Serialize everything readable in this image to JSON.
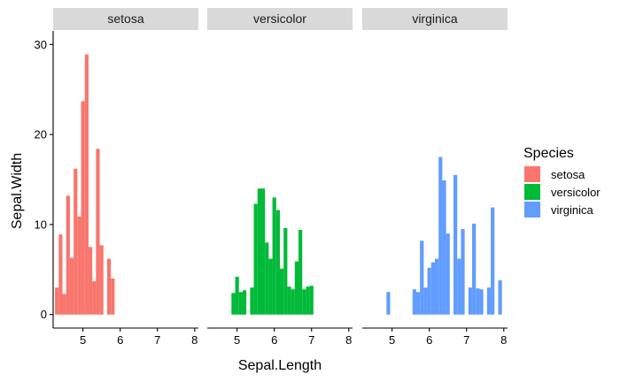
{
  "chart_data": {
    "type": "bar",
    "xlabel": "Sepal.Length",
    "ylabel": "Sepal.Width",
    "x_ticks": [
      5,
      6,
      7,
      8
    ],
    "y_ticks": [
      0,
      10,
      20,
      30
    ],
    "xlim": [
      4.2,
      8.1
    ],
    "ylim": [
      -1.5,
      31.5
    ],
    "grid": false,
    "legend": {
      "title": "Species",
      "position": "right",
      "entries": [
        "setosa",
        "versicolor",
        "virginica"
      ]
    },
    "facets": [
      {
        "name": "setosa",
        "color": "#F8766D",
        "x": [
          4.3,
          4.4,
          4.5,
          4.6,
          4.7,
          4.8,
          4.9,
          5.0,
          5.1,
          5.2,
          5.3,
          5.4,
          5.5,
          5.7,
          5.8
        ],
        "values": [
          3.0,
          8.9,
          2.3,
          13.2,
          6.3,
          16.2,
          10.9,
          23.7,
          28.9,
          7.5,
          3.7,
          18.4,
          7.7,
          6.2,
          4.0
        ]
      },
      {
        "name": "versicolor",
        "color": "#00BA38",
        "x": [
          4.9,
          5.0,
          5.1,
          5.2,
          5.4,
          5.5,
          5.6,
          5.7,
          5.8,
          5.9,
          6.0,
          6.1,
          6.2,
          6.3,
          6.4,
          6.5,
          6.6,
          6.7,
          6.8,
          6.9,
          7.0
        ],
        "values": [
          2.4,
          4.2,
          2.5,
          2.7,
          3.0,
          12.3,
          14.0,
          14.0,
          8.0,
          6.2,
          13.0,
          11.6,
          5.1,
          9.6,
          3.1,
          2.8,
          5.9,
          9.4,
          2.8,
          3.1,
          3.2
        ]
      },
      {
        "name": "virginica",
        "color": "#619CFF",
        "x": [
          4.9,
          5.6,
          5.7,
          5.8,
          5.9,
          6.0,
          6.1,
          6.2,
          6.3,
          6.4,
          6.5,
          6.7,
          6.8,
          6.9,
          7.1,
          7.2,
          7.3,
          7.4,
          7.6,
          7.7,
          7.9
        ],
        "values": [
          2.5,
          2.8,
          2.5,
          8.2,
          3.0,
          5.2,
          5.8,
          6.2,
          17.5,
          14.9,
          9.0,
          15.5,
          6.2,
          9.5,
          3.0,
          10.1,
          2.9,
          2.8,
          3.0,
          11.9,
          3.8
        ]
      }
    ]
  }
}
